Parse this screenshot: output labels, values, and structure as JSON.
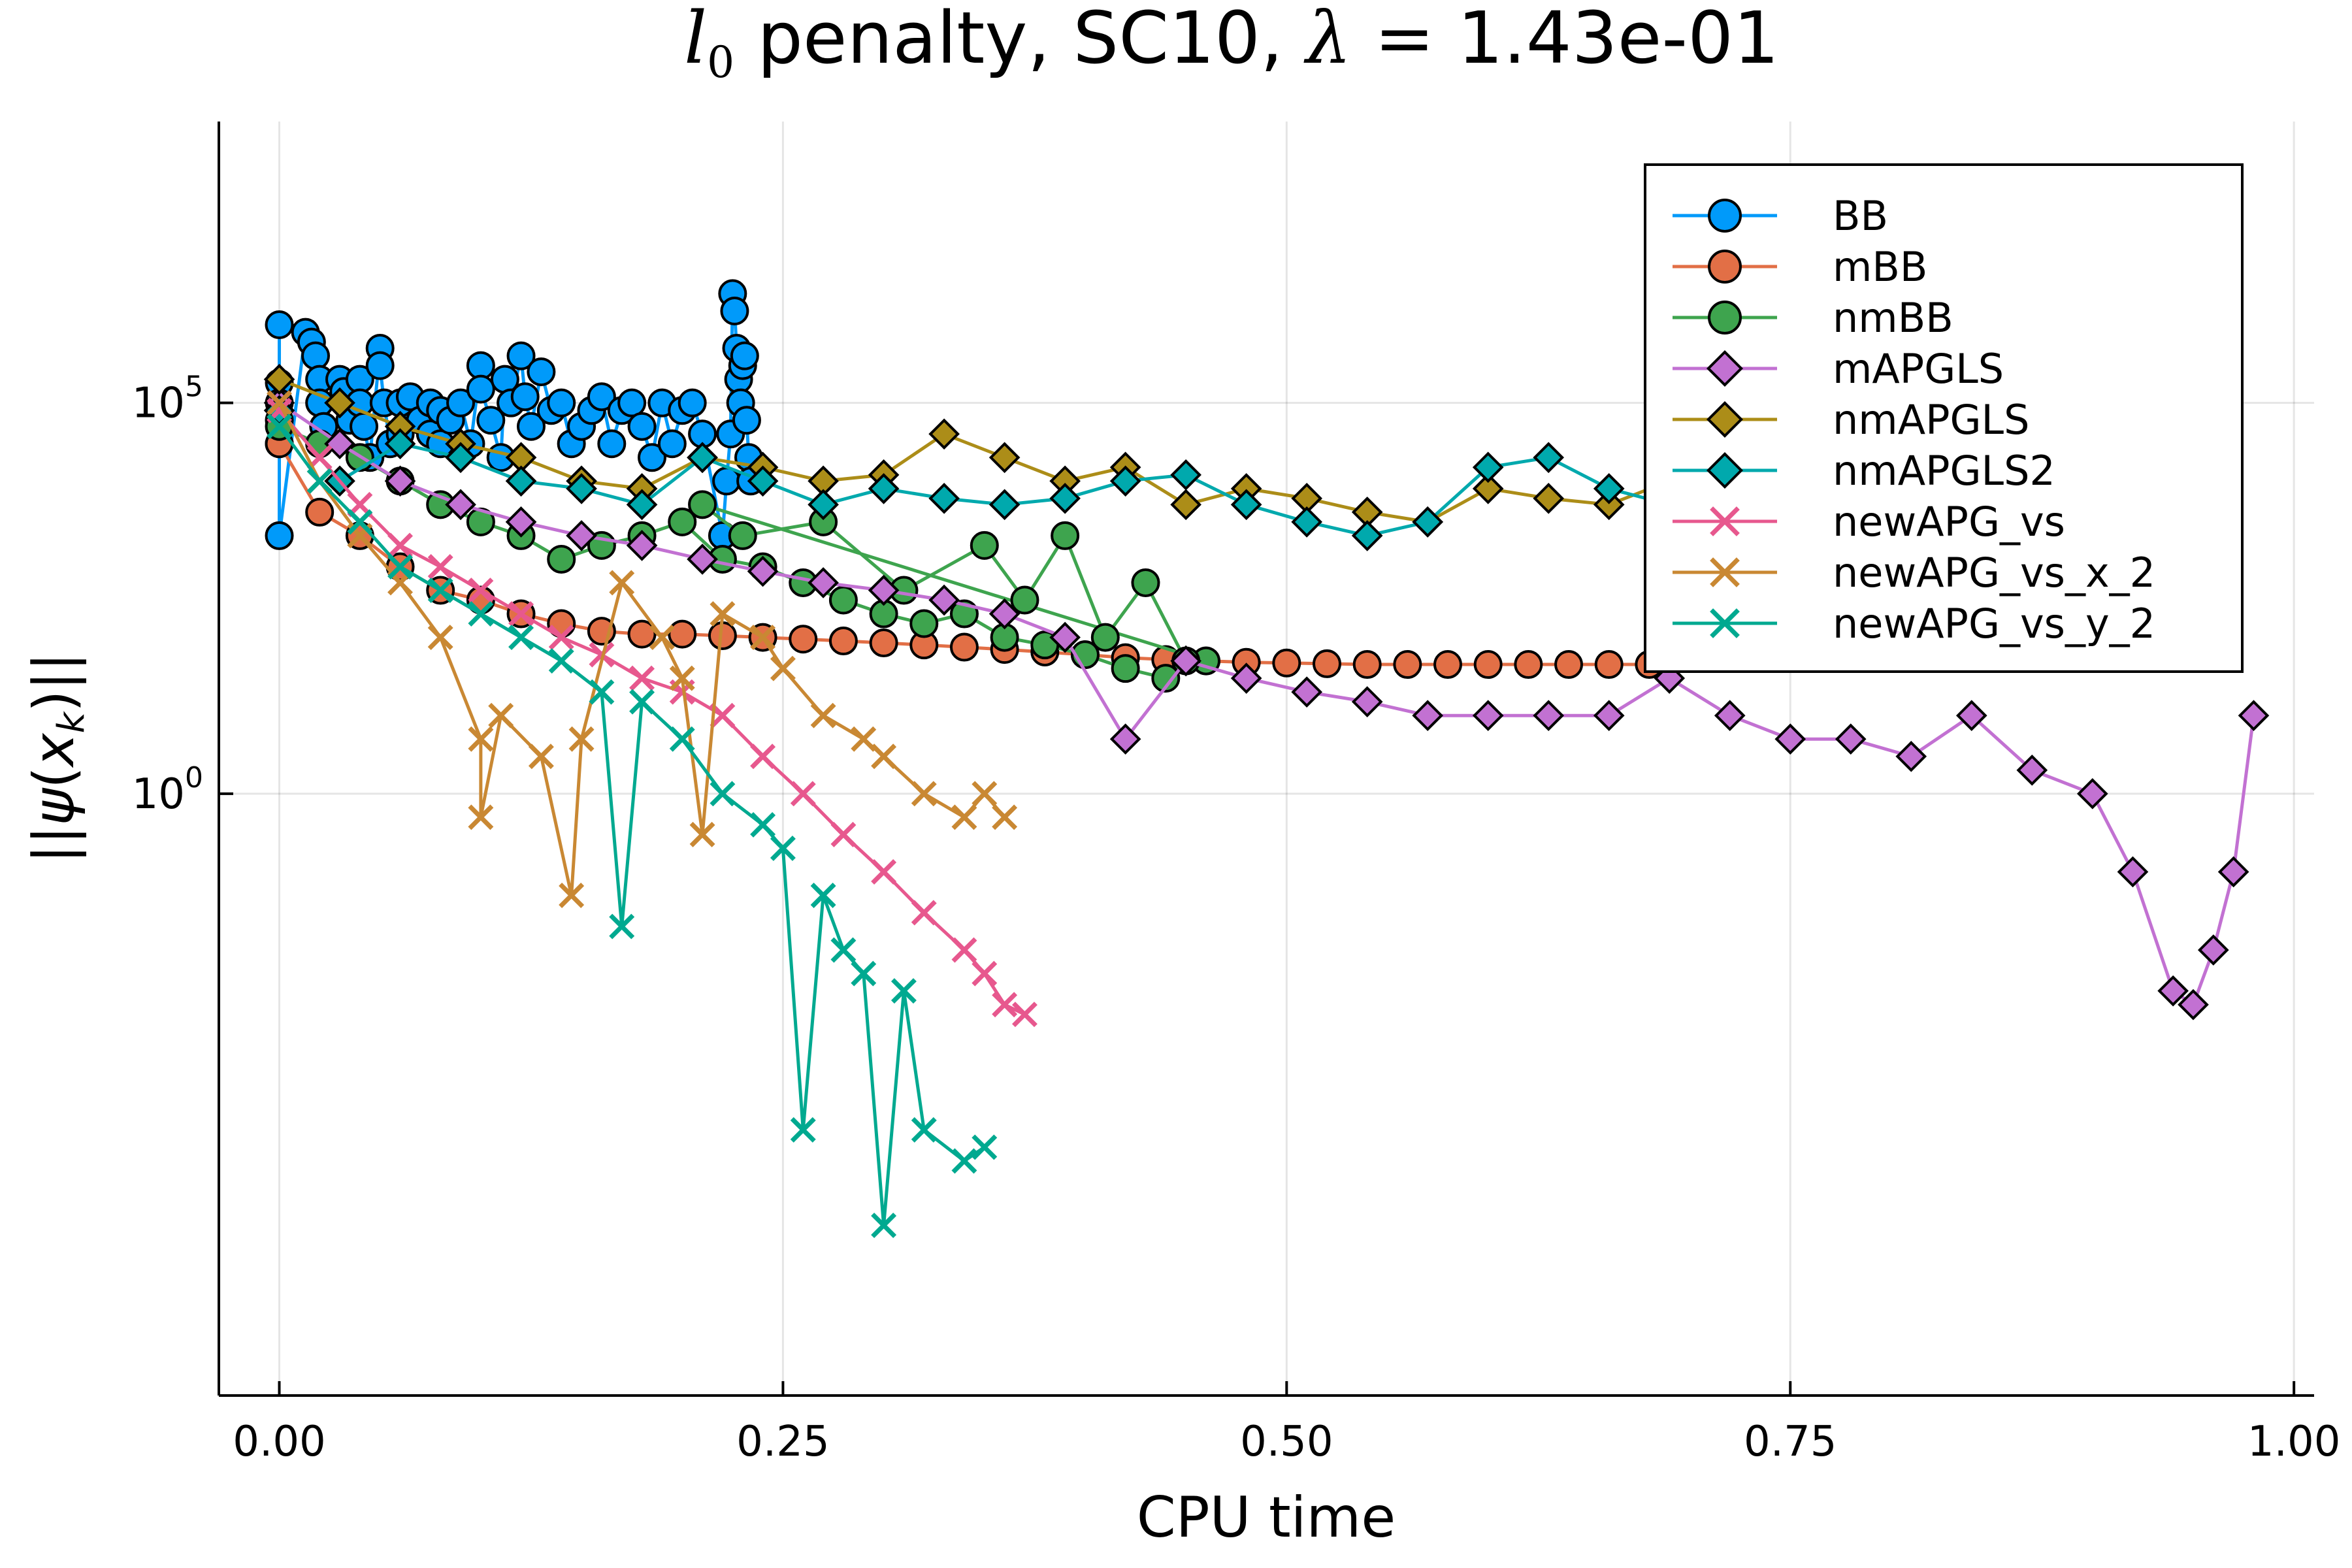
{
  "chart_data": {
    "type": "line",
    "title_parts": {
      "math_l": "l",
      "math_sub": "0",
      "text_mid": " penalty, SC10, ",
      "math_lambda": "λ",
      "math_eq": " = ",
      "text_val": "1.43e-01"
    },
    "xlabel": "CPU time",
    "ylabel_parts": {
      "open": "||",
      "psi": "ψ",
      "paren_open": "(",
      "x": "x",
      "sub": "k",
      "paren_close": ")",
      "close": "||"
    },
    "xscale": "linear",
    "yscale": "log10",
    "xlim": [
      -0.03,
      1.01
    ],
    "ylim_log10": [
      -7.7,
      8.6
    ],
    "grid": true,
    "legend_position": "top-right",
    "xticks": [
      {
        "value": 0.0,
        "label": "0.00"
      },
      {
        "value": 0.25,
        "label": "0.25"
      },
      {
        "value": 0.5,
        "label": "0.50"
      },
      {
        "value": 0.75,
        "label": "0.75"
      },
      {
        "value": 1.0,
        "label": "1.00"
      }
    ],
    "yticks": [
      {
        "value": 1,
        "base": "10",
        "exp": "0"
      },
      {
        "value": 100000,
        "base": "10",
        "exp": "5"
      }
    ],
    "series": [
      {
        "name": "BB",
        "color": "#009AFA",
        "marker": "circle",
        "x": [
          0.0,
          0.0,
          0.0,
          0.0,
          0.0,
          0.0,
          0.013,
          0.016,
          0.018,
          0.02,
          0.02,
          0.022,
          0.03,
          0.032,
          0.035,
          0.04,
          0.04,
          0.042,
          0.045,
          0.05,
          0.05,
          0.052,
          0.055,
          0.06,
          0.06,
          0.065,
          0.07,
          0.075,
          0.075,
          0.08,
          0.08,
          0.085,
          0.09,
          0.095,
          0.1,
          0.1,
          0.105,
          0.11,
          0.112,
          0.115,
          0.12,
          0.122,
          0.125,
          0.13,
          0.135,
          0.14,
          0.145,
          0.15,
          0.155,
          0.16,
          0.165,
          0.17,
          0.175,
          0.18,
          0.185,
          0.19,
          0.195,
          0.2,
          0.205,
          0.21,
          0.22,
          0.222,
          0.224,
          0.225,
          0.226,
          0.227,
          0.228,
          0.229,
          0.23,
          0.231,
          0.232,
          0.233,
          0.234
        ],
        "y": [
          1000000.0,
          180000.0,
          100000.0,
          60000.0,
          30000.0,
          2000.0,
          800000.0,
          600000.0,
          400000.0,
          200000.0,
          100000.0,
          50000.0,
          200000.0,
          140000.0,
          60000.0,
          200000.0,
          100000.0,
          50000.0,
          20000.0,
          500000.0,
          300000.0,
          100000.0,
          30000.0,
          100000.0,
          40000.0,
          120000.0,
          60000.0,
          100000.0,
          40000.0,
          80000.0,
          30000.0,
          60000.0,
          100000.0,
          30000.0,
          300000.0,
          150000.0,
          60000.0,
          20000.0,
          200000.0,
          100000.0,
          400000.0,
          120000.0,
          50000.0,
          250000.0,
          80000.0,
          100000.0,
          30000.0,
          50000.0,
          80000.0,
          120000.0,
          30000.0,
          80000.0,
          100000.0,
          50000.0,
          20000.0,
          100000.0,
          30000.0,
          80000.0,
          100000.0,
          40000.0,
          2000.0,
          10000.0,
          40000.0,
          2500000.0,
          1500000.0,
          500000.0,
          200000.0,
          100000.0,
          300000.0,
          400000.0,
          60000.0,
          20000.0,
          10000.0
        ]
      },
      {
        "name": "mBB",
        "color": "#E26F46",
        "marker": "circle",
        "x": [
          0.0,
          0.02,
          0.04,
          0.06,
          0.08,
          0.1,
          0.12,
          0.14,
          0.16,
          0.18,
          0.2,
          0.22,
          0.24,
          0.26,
          0.28,
          0.3,
          0.32,
          0.34,
          0.36,
          0.38,
          0.4,
          0.42,
          0.44,
          0.46,
          0.48,
          0.5,
          0.52,
          0.54,
          0.56,
          0.58,
          0.6,
          0.62,
          0.64,
          0.66,
          0.68,
          0.7,
          0.7,
          0.701,
          0.702,
          0.71,
          0.72,
          0.725,
          0.73,
          0.73,
          0.73
        ],
        "y": [
          30000.0,
          4000.0,
          2000.0,
          800,
          400,
          300,
          200,
          150,
          120,
          110,
          110,
          105,
          100,
          95,
          90,
          85,
          80,
          75,
          70,
          65,
          60,
          55,
          52,
          50,
          48,
          47,
          46,
          45,
          45,
          45,
          45,
          45,
          45,
          45,
          45,
          8000.0,
          2000.0,
          800,
          200,
          150,
          100,
          80,
          60,
          200,
          400
        ]
      },
      {
        "name": "nmBB",
        "color": "#3EA44E",
        "marker": "circle",
        "x": [
          0.0,
          0.02,
          0.04,
          0.06,
          0.08,
          0.1,
          0.12,
          0.14,
          0.16,
          0.18,
          0.2,
          0.22,
          0.24,
          0.26,
          0.28,
          0.3,
          0.32,
          0.34,
          0.36,
          0.38,
          0.4,
          0.42,
          0.44,
          0.46,
          0.21,
          0.23,
          0.27,
          0.31,
          0.35,
          0.37,
          0.39,
          0.41,
          0.43,
          0.45
        ],
        "y": [
          50000.0,
          30000.0,
          20000.0,
          10000.0,
          5000.0,
          3000.0,
          2000.0,
          1000.0,
          1500,
          2000,
          3000,
          1000,
          800,
          500,
          300,
          200,
          150,
          200,
          100,
          80,
          60,
          40,
          30,
          50,
          5000,
          2000,
          3000,
          400,
          1500,
          300,
          2000,
          100,
          500,
          50
        ]
      },
      {
        "name": "mAPGLS",
        "color": "#C271D2",
        "marker": "diamond",
        "x": [
          0.0,
          0.03,
          0.06,
          0.09,
          0.12,
          0.15,
          0.18,
          0.21,
          0.24,
          0.27,
          0.3,
          0.33,
          0.36,
          0.39,
          0.42,
          0.45,
          0.48,
          0.51,
          0.54,
          0.57,
          0.6,
          0.63,
          0.66,
          0.69,
          0.72,
          0.75,
          0.78,
          0.81,
          0.84,
          0.87,
          0.9,
          0.92,
          0.94,
          0.95,
          0.96,
          0.97,
          0.98
        ],
        "y": [
          100000.0,
          30000.0,
          10000.0,
          5000.0,
          3000.0,
          2000.0,
          1500.0,
          1000.0,
          700,
          500,
          400,
          300,
          200,
          100,
          5,
          50,
          30,
          20,
          15,
          10,
          10,
          10,
          10,
          30,
          10,
          5,
          5,
          3,
          10,
          2,
          1,
          0.1,
          0.003,
          0.002,
          0.01,
          0.1,
          10
        ]
      },
      {
        "name": "nmAPGLS",
        "color": "#AC8D18",
        "marker": "diamond",
        "x": [
          0.0,
          0.03,
          0.06,
          0.09,
          0.12,
          0.15,
          0.18,
          0.21,
          0.24,
          0.27,
          0.3,
          0.33,
          0.36,
          0.39,
          0.42,
          0.45,
          0.48,
          0.51,
          0.54,
          0.57,
          0.6,
          0.63,
          0.66,
          0.69,
          0.72,
          0.75,
          0.78,
          0.81,
          0.84,
          0.86,
          0.88,
          0.9
        ],
        "y": [
          200000.0,
          100000.0,
          50000.0,
          30000.0,
          20000.0,
          10000.0,
          8000.0,
          20000.0,
          15000.0,
          10000.0,
          12000.0,
          40000.0,
          20000.0,
          10000.0,
          15000.0,
          5000.0,
          8000.0,
          6000.0,
          4000.0,
          3000.0,
          8000.0,
          6000.0,
          5000.0,
          10000.0,
          4000.0,
          3000.0,
          2000.0,
          1500.0,
          1000.0,
          500,
          800,
          400
        ]
      },
      {
        "name": "nmAPGLS2",
        "color": "#00A9AD",
        "marker": "diamond",
        "x": [
          0.0,
          0.03,
          0.06,
          0.09,
          0.12,
          0.15,
          0.18,
          0.21,
          0.24,
          0.27,
          0.3,
          0.33,
          0.36,
          0.39,
          0.42,
          0.45,
          0.48,
          0.51,
          0.54,
          0.57,
          0.6,
          0.63,
          0.66,
          0.69,
          0.72,
          0.75,
          0.78,
          0.81
        ],
        "y": [
          80000.0,
          10000.0,
          30000.0,
          20000.0,
          10000.0,
          8000.0,
          5000.0,
          20000.0,
          10000.0,
          5000.0,
          8000.0,
          6000.0,
          5000.0,
          6000.0,
          10000.0,
          12000.0,
          5000.0,
          3000.0,
          2000.0,
          3000.0,
          15000.0,
          20000.0,
          8000.0,
          5000.0,
          2000.0,
          1000.0,
          500,
          300
        ]
      },
      {
        "name": "newAPG_vs",
        "color": "#E7588E",
        "marker": "x",
        "x": [
          0.0,
          0.02,
          0.04,
          0.06,
          0.08,
          0.1,
          0.12,
          0.14,
          0.16,
          0.18,
          0.2,
          0.22,
          0.24,
          0.26,
          0.28,
          0.3,
          0.32,
          0.34,
          0.35,
          0.36,
          0.37
        ],
        "y": [
          80000.0,
          20000.0,
          5000.0,
          1500.0,
          800,
          400,
          200,
          100,
          60,
          30,
          20,
          10,
          3,
          1,
          0.3,
          0.1,
          0.03,
          0.01,
          0.005,
          0.002,
          0.0015
        ]
      },
      {
        "name": "newAPG_vs_x_2",
        "color": "#C98833",
        "marker": "x",
        "x": [
          0.0,
          0.02,
          0.04,
          0.06,
          0.08,
          0.1,
          0.1,
          0.11,
          0.13,
          0.145,
          0.15,
          0.17,
          0.19,
          0.2,
          0.21,
          0.22,
          0.24,
          0.25,
          0.27,
          0.29,
          0.3,
          0.32,
          0.34,
          0.35,
          0.36
        ],
        "y": [
          100000.0,
          10000.0,
          2000.0,
          500,
          100,
          5,
          0.5,
          10,
          3,
          0.05,
          5,
          500,
          100,
          30,
          0.3,
          200,
          100,
          40,
          10,
          5,
          3,
          1,
          0.5,
          1,
          0.5
        ]
      },
      {
        "name": "newAPG_vs_y_2",
        "color": "#00A990",
        "marker": "x",
        "x": [
          0.0,
          0.02,
          0.04,
          0.06,
          0.08,
          0.1,
          0.12,
          0.14,
          0.16,
          0.17,
          0.18,
          0.2,
          0.22,
          0.24,
          0.25,
          0.26,
          0.27,
          0.28,
          0.29,
          0.3,
          0.31,
          0.32,
          0.34,
          0.35
        ],
        "y": [
          50000.0,
          10000.0,
          3000.0,
          800,
          400,
          200,
          100,
          50,
          20,
          0.02,
          15,
          5,
          1,
          0.4,
          0.2,
          5e-05,
          0.05,
          0.01,
          0.005,
          3e-06,
          0.003,
          5e-05,
          2e-05,
          3e-05
        ]
      }
    ]
  }
}
